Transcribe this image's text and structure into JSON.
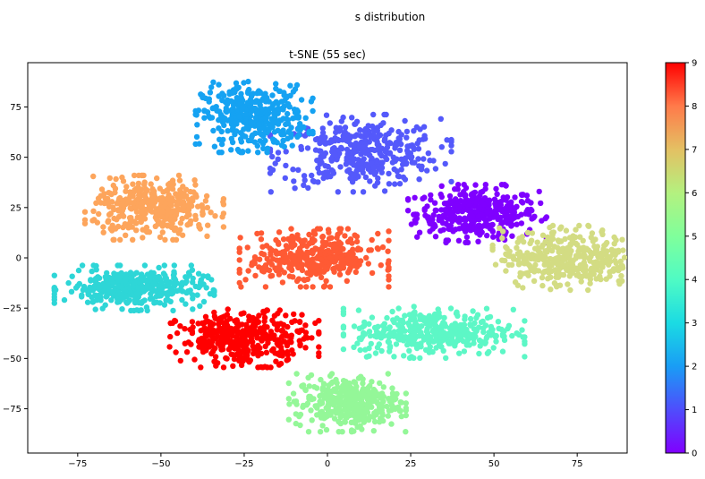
{
  "figure": {
    "suptitle": "s distribution"
  },
  "chart_data": {
    "type": "scatter",
    "title": "t-SNE (55 sec)",
    "xlabel": "",
    "ylabel": "",
    "xlim": [
      -90,
      90
    ],
    "ylim": [
      -97,
      97
    ],
    "xticks": [
      -75,
      -50,
      -25,
      0,
      25,
      50,
      75
    ],
    "yticks": [
      -75,
      -50,
      -25,
      0,
      25,
      50,
      75
    ],
    "xtick_labels": [
      "−75",
      "−50",
      "−25",
      "0",
      "25",
      "50",
      "75"
    ],
    "ytick_labels": [
      "−75",
      "−50",
      "−25",
      "0",
      "25",
      "50",
      "75"
    ],
    "grid": false,
    "legend": "none",
    "colormap": "rainbow",
    "colorbar": {
      "range": [
        0,
        9
      ],
      "ticks": [
        0,
        1,
        2,
        3,
        4,
        5,
        6,
        7,
        8,
        9
      ],
      "tick_labels": [
        "0",
        "1",
        "2",
        "3",
        "4",
        "5",
        "6",
        "7",
        "8",
        "9"
      ],
      "colors": [
        "#8000ff",
        "#4f4dfc",
        "#199df5",
        "#1bdbe3",
        "#4ffbc4",
        "#80ff9b",
        "#b4f17f",
        "#e4c063",
        "#ff7a4a",
        "#ff0000"
      ]
    },
    "clusters": [
      {
        "label": 0,
        "color": "#7f00ff",
        "center": [
          45,
          22
        ],
        "spread": [
          13,
          9
        ]
      },
      {
        "label": 1,
        "color": "#5459fb",
        "center": [
          10,
          52
        ],
        "spread": [
          17,
          12
        ]
      },
      {
        "label": 2,
        "color": "#15a2f2",
        "center": [
          -22,
          70
        ],
        "spread": [
          11,
          11
        ]
      },
      {
        "label": 3,
        "color": "#2ed6d7",
        "center": [
          -58,
          -15
        ],
        "spread": [
          15,
          7
        ]
      },
      {
        "label": 4,
        "color": "#5df7c6",
        "center": [
          32,
          -37
        ],
        "spread": [
          17,
          8
        ]
      },
      {
        "label": 5,
        "color": "#94f798",
        "center": [
          6,
          -72
        ],
        "spread": [
          11,
          9
        ]
      },
      {
        "label": 6,
        "color": "#d3dc83",
        "center": [
          72,
          0
        ],
        "spread": [
          14,
          10
        ]
      },
      {
        "label": 7,
        "color": "#fda55c",
        "center": [
          -52,
          25
        ],
        "spread": [
          13,
          10
        ]
      },
      {
        "label": 8,
        "color": "#ff5a34",
        "center": [
          -4,
          0
        ],
        "spread": [
          14,
          9
        ]
      },
      {
        "label": 9,
        "color": "#ff0000",
        "center": [
          -25,
          -40
        ],
        "spread": [
          14,
          9
        ]
      }
    ]
  }
}
